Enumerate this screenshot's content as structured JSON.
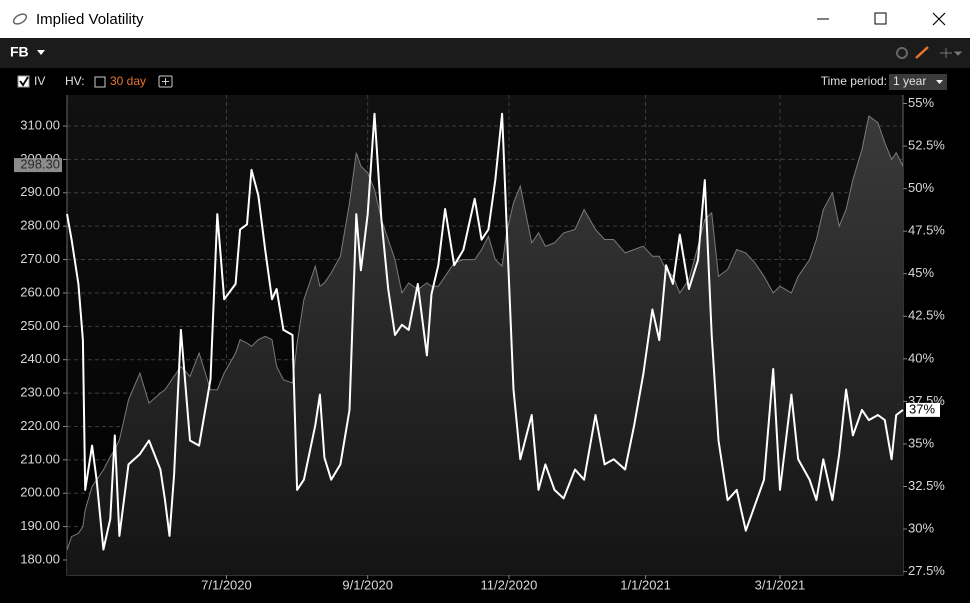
{
  "window": {
    "title": "Implied Volatility"
  },
  "toolbar": {
    "symbol": "FB",
    "iv": "IV",
    "hv": "HV:",
    "hv_period": "30 day",
    "time_period_label": "Time period:",
    "time_period": "1 year"
  },
  "chart_data": {
    "type": "line",
    "x": [
      "2020-04-22",
      "2020-04-24",
      "2020-04-27",
      "2020-04-29",
      "2020-04-30",
      "2020-05-03",
      "2020-05-05",
      "2020-05-08",
      "2020-05-11",
      "2020-05-13",
      "2020-05-15",
      "2020-05-19",
      "2020-05-24",
      "2020-05-28",
      "2020-06-02",
      "2020-06-04",
      "2020-06-06",
      "2020-06-08",
      "2020-06-11",
      "2020-06-15",
      "2020-06-19",
      "2020-06-24",
      "2020-06-27",
      "2020-06-30",
      "2020-07-05",
      "2020-07-07",
      "2020-07-10",
      "2020-07-12",
      "2020-07-15",
      "2020-07-18",
      "2020-07-21",
      "2020-07-23",
      "2020-07-26",
      "2020-07-30",
      "2020-08-01",
      "2020-08-04",
      "2020-08-09",
      "2020-08-11",
      "2020-08-13",
      "2020-08-16",
      "2020-08-20",
      "2020-08-24",
      "2020-08-27",
      "2020-08-29",
      "2020-09-01",
      "2020-09-04",
      "2020-09-07",
      "2020-09-10",
      "2020-09-13",
      "2020-09-16",
      "2020-09-19",
      "2020-09-23",
      "2020-09-27",
      "2020-09-29",
      "2020-10-02",
      "2020-10-05",
      "2020-10-09",
      "2020-10-13",
      "2020-10-18",
      "2020-10-21",
      "2020-10-24",
      "2020-10-27",
      "2020-10-30",
      "2020-11-01",
      "2020-11-04",
      "2020-11-07",
      "2020-11-12",
      "2020-11-15",
      "2020-11-18",
      "2020-11-22",
      "2020-11-26",
      "2020-12-01",
      "2020-12-05",
      "2020-12-10",
      "2020-12-14",
      "2020-12-18",
      "2020-12-23",
      "2020-12-27",
      "2020-12-31",
      "2021-01-04",
      "2021-01-07",
      "2021-01-10",
      "2021-01-13",
      "2021-01-16",
      "2021-01-20",
      "2021-01-24",
      "2021-01-27",
      "2021-01-30",
      "2021-02-02",
      "2021-02-06",
      "2021-02-10",
      "2021-02-14",
      "2021-02-18",
      "2021-02-22",
      "2021-02-26",
      "2021-03-01",
      "2021-03-06",
      "2021-03-09",
      "2021-03-14",
      "2021-03-17",
      "2021-03-20",
      "2021-03-24",
      "2021-03-27",
      "2021-03-30",
      "2021-04-02",
      "2021-04-06",
      "2021-04-09",
      "2021-04-13",
      "2021-04-16",
      "2021-04-19",
      "2021-04-21",
      "2021-04-24"
    ],
    "series": [
      {
        "color": "#7a7a7a",
        "area": true,
        "values": [
          183,
          187,
          188,
          190,
          195,
          202,
          204,
          207,
          211,
          213,
          216,
          228,
          236,
          227,
          230,
          231,
          233,
          235,
          238,
          235,
          242,
          231,
          231,
          236,
          242,
          246,
          245,
          244,
          246,
          247,
          246,
          238,
          234,
          233,
          245,
          258,
          268,
          262,
          263,
          266,
          271,
          287,
          302,
          298,
          296,
          291,
          282,
          276,
          270,
          260,
          263,
          261,
          263,
          262,
          262,
          265,
          269,
          270,
          270,
          273,
          277,
          270,
          268,
          278,
          287,
          292,
          275,
          278,
          274,
          275,
          278,
          279,
          285,
          279,
          276,
          276,
          272,
          273,
          274,
          271,
          271,
          267,
          265,
          260,
          264,
          274,
          282,
          284,
          265,
          267,
          273,
          272,
          269,
          265,
          260,
          262,
          260,
          265,
          270,
          276,
          285,
          290,
          280,
          285,
          294,
          303,
          313,
          311,
          305,
          300,
          302,
          298
        ]
      },
      {
        "color": "#ffffff",
        "axis": "y2",
        "values": [
          48.5,
          47.0,
          44.4,
          41.1,
          32.3,
          34.9,
          32.9,
          28.8,
          30.6,
          35.5,
          29.6,
          33.8,
          34.4,
          35.2,
          33.5,
          31.7,
          29.6,
          33.2,
          41.7,
          35.2,
          34.9,
          38.8,
          48.5,
          43.5,
          44.4,
          47.6,
          47.9,
          51.1,
          49.6,
          46.4,
          43.5,
          44.1,
          41.7,
          41.4,
          32.3,
          32.9,
          36.1,
          37.9,
          34.2,
          32.9,
          33.8,
          37.0,
          48.5,
          45.2,
          48.5,
          54.4,
          48.2,
          44.1,
          41.4,
          42.0,
          41.7,
          44.4,
          40.2,
          43.8,
          45.5,
          48.8,
          45.5,
          46.4,
          49.4,
          47.0,
          47.6,
          50.5,
          54.4,
          47.9,
          38.2,
          34.1,
          36.7,
          32.3,
          33.8,
          32.3,
          31.8,
          33.5,
          32.9,
          36.7,
          33.8,
          34.1,
          33.5,
          36.1,
          39.1,
          42.9,
          41.1,
          45.5,
          44.4,
          47.3,
          44.1,
          45.8,
          50.5,
          41.4,
          35.2,
          31.7,
          32.3,
          29.9,
          31.4,
          32.9,
          39.4,
          32.3,
          37.9,
          34.1,
          32.9,
          31.7,
          34.1,
          31.7,
          34.4,
          38.2,
          35.5,
          37.0,
          36.4,
          36.7,
          36.4,
          34.1,
          36.7,
          37.0
        ]
      }
    ],
    "xlim": [
      "2020-04-22",
      "2021-04-24"
    ],
    "xticks": [
      {
        "value": "2020-07-01",
        "label": "7/1/2020"
      },
      {
        "value": "2020-09-01",
        "label": "9/1/2020"
      },
      {
        "value": "2020-11-02",
        "label": "11/2/2020"
      },
      {
        "value": "2021-01-01",
        "label": "1/1/2021"
      },
      {
        "value": "2021-03-01",
        "label": "3/1/2021"
      }
    ],
    "ylim": [
      175.5,
      319.3
    ],
    "yticks": [
      {
        "value": 180,
        "label": "180.00"
      },
      {
        "value": 190,
        "label": "190.00"
      },
      {
        "value": 200,
        "label": "200.00"
      },
      {
        "value": 210,
        "label": "210.00"
      },
      {
        "value": 220,
        "label": "220.00"
      },
      {
        "value": 230,
        "label": "230.00"
      },
      {
        "value": 240,
        "label": "240.00"
      },
      {
        "value": 250,
        "label": "250.00"
      },
      {
        "value": 260,
        "label": "260.00"
      },
      {
        "value": 270,
        "label": "270.00"
      },
      {
        "value": 280,
        "label": "280.00"
      },
      {
        "value": 290,
        "label": "290.00"
      },
      {
        "value": 300,
        "label": "300.00"
      },
      {
        "value": 310,
        "label": "310.00"
      }
    ],
    "y2lim": [
      27.3,
      55.5
    ],
    "y2ticks": [
      {
        "value": 27.5,
        "label": "27.5%"
      },
      {
        "value": 30,
        "label": "30%"
      },
      {
        "value": 32.5,
        "label": "32.5%"
      },
      {
        "value": 35,
        "label": "35%"
      },
      {
        "value": 37.5,
        "label": "37.5%"
      },
      {
        "value": 40,
        "label": "40%"
      },
      {
        "value": 42.5,
        "label": "42.5%"
      },
      {
        "value": 45,
        "label": "45%"
      },
      {
        "value": 47.5,
        "label": "47.5%"
      },
      {
        "value": 50,
        "label": "50%"
      },
      {
        "value": 52.5,
        "label": "52.5%"
      },
      {
        "value": 55,
        "label": "55%"
      }
    ],
    "price_marker": {
      "value": 298.3,
      "label": "298.30"
    },
    "iv_marker": {
      "value": 37,
      "label": "37%"
    },
    "grid": true
  }
}
